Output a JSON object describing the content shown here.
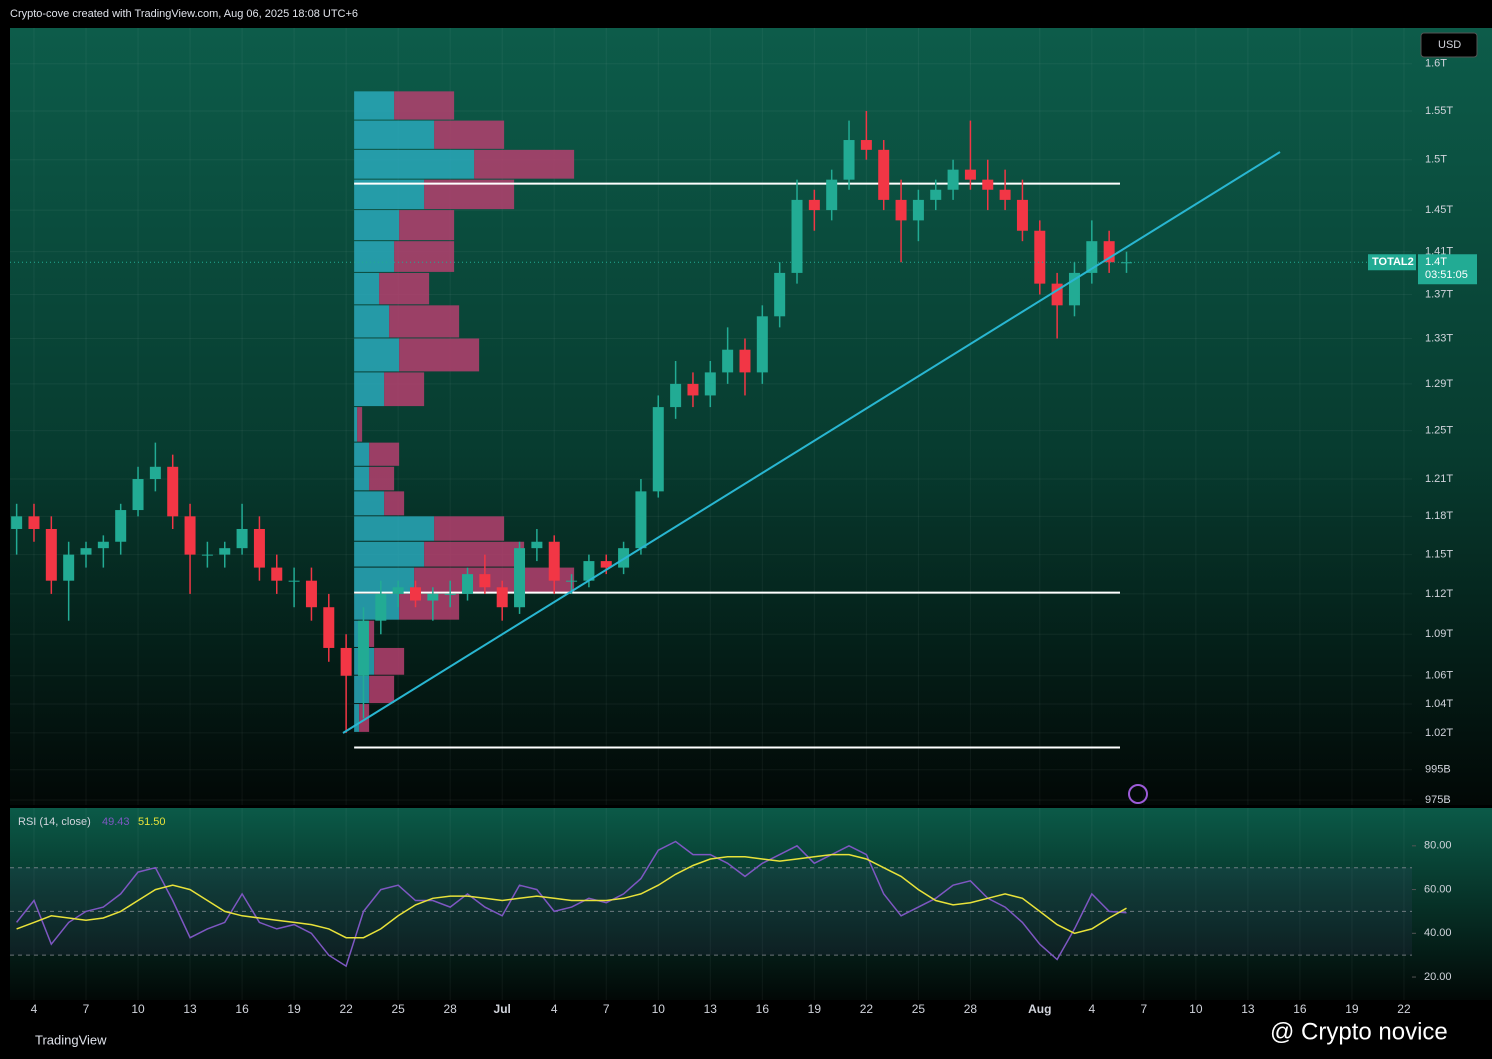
{
  "header": "Crypto-cove created with TradingView.com, Aug 06, 2025 18:08 UTC+6",
  "chart_data": {
    "type": "candlestick",
    "log_scale": true,
    "currency": "USD",
    "symbol": "TOTAL2",
    "up_color": "#22ab94",
    "down_color": "#f23645",
    "x": [
      "2025-06-03",
      "2025-06-04",
      "2025-06-05",
      "2025-06-06",
      "2025-06-07",
      "2025-06-08",
      "2025-06-09",
      "2025-06-10",
      "2025-06-11",
      "2025-06-12",
      "2025-06-13",
      "2025-06-14",
      "2025-06-15",
      "2025-06-16",
      "2025-06-17",
      "2025-06-18",
      "2025-06-19",
      "2025-06-20",
      "2025-06-21",
      "2025-06-22",
      "2025-06-23",
      "2025-06-24",
      "2025-06-25",
      "2025-06-26",
      "2025-06-27",
      "2025-06-28",
      "2025-06-29",
      "2025-06-30",
      "2025-07-01",
      "2025-07-02",
      "2025-07-03",
      "2025-07-04",
      "2025-07-05",
      "2025-07-06",
      "2025-07-07",
      "2025-07-08",
      "2025-07-09",
      "2025-07-10",
      "2025-07-11",
      "2025-07-12",
      "2025-07-13",
      "2025-07-14",
      "2025-07-15",
      "2025-07-16",
      "2025-07-17",
      "2025-07-18",
      "2025-07-19",
      "2025-07-20",
      "2025-07-21",
      "2025-07-22",
      "2025-07-23",
      "2025-07-24",
      "2025-07-25",
      "2025-07-26",
      "2025-07-27",
      "2025-07-28",
      "2025-07-29",
      "2025-07-30",
      "2025-07-31",
      "2025-08-01",
      "2025-08-02",
      "2025-08-03",
      "2025-08-04",
      "2025-08-05",
      "2025-08-06"
    ],
    "open": [
      1170000000000.0,
      1180000000000.0,
      1170000000000.0,
      1130000000000.0,
      1150000000000.0,
      1155000000000.0,
      1160000000000.0,
      1185000000000.0,
      1210000000000.0,
      1220000000000.0,
      1180000000000.0,
      1150000000000.0,
      1150000000000.0,
      1155000000000.0,
      1170000000000.0,
      1140000000000.0,
      1130000000000.0,
      1130000000000.0,
      1110000000000.0,
      1080000000000.0,
      1060000000000.0,
      1100000000000.0,
      1120000000000.0,
      1125000000000.0,
      1115000000000.0,
      1120000000000.0,
      1120000000000.0,
      1135000000000.0,
      1125000000000.0,
      1110000000000.0,
      1155000000000.0,
      1160000000000.0,
      1130000000000.0,
      1130000000000.0,
      1145000000000.0,
      1140000000000.0,
      1155000000000.0,
      1200000000000.0,
      1270000000000.0,
      1290000000000.0,
      1280000000000.0,
      1300000000000.0,
      1320000000000.0,
      1300000000000.0,
      1350000000000.0,
      1390000000000.0,
      1460000000000.0,
      1450000000000.0,
      1480000000000.0,
      1520000000000.0,
      1510000000000.0,
      1460000000000.0,
      1440000000000.0,
      1460000000000.0,
      1470000000000.0,
      1490000000000.0,
      1480000000000.0,
      1470000000000.0,
      1460000000000.0,
      1430000000000.0,
      1380000000000.0,
      1360000000000.0,
      1390000000000.0,
      1420000000000.0,
      1400000000000.0
    ],
    "high": [
      1190000000000.0,
      1190000000000.0,
      1180000000000.0,
      1160000000000.0,
      1160000000000.0,
      1165000000000.0,
      1190000000000.0,
      1220000000000.0,
      1240000000000.0,
      1230000000000.0,
      1190000000000.0,
      1160000000000.0,
      1160000000000.0,
      1190000000000.0,
      1180000000000.0,
      1150000000000.0,
      1140000000000.0,
      1140000000000.0,
      1120000000000.0,
      1090000000000.0,
      1110000000000.0,
      1130000000000.0,
      1130000000000.0,
      1130000000000.0,
      1125000000000.0,
      1130000000000.0,
      1140000000000.0,
      1150000000000.0,
      1130000000000.0,
      1160000000000.0,
      1170000000000.0,
      1165000000000.0,
      1135000000000.0,
      1150000000000.0,
      1150000000000.0,
      1160000000000.0,
      1210000000000.0,
      1280000000000.0,
      1310000000000.0,
      1300000000000.0,
      1310000000000.0,
      1340000000000.0,
      1330000000000.0,
      1360000000000.0,
      1400000000000.0,
      1480000000000.0,
      1470000000000.0,
      1490000000000.0,
      1540000000000.0,
      1550000000000.0,
      1520000000000.0,
      1480000000000.0,
      1470000000000.0,
      1480000000000.0,
      1500000000000.0,
      1540000000000.0,
      1500000000000.0,
      1490000000000.0,
      1480000000000.0,
      1440000000000.0,
      1390000000000.0,
      1400000000000.0,
      1440000000000.0,
      1430000000000.0,
      1410000000000.0
    ],
    "low": [
      1150000000000.0,
      1160000000000.0,
      1120000000000.0,
      1100000000000.0,
      1140000000000.0,
      1140000000000.0,
      1150000000000.0,
      1180000000000.0,
      1200000000000.0,
      1170000000000.0,
      1120000000000.0,
      1140000000000.0,
      1140000000000.0,
      1150000000000.0,
      1130000000000.0,
      1120000000000.0,
      1110000000000.0,
      1100000000000.0,
      1070000000000.0,
      1020000000000.0,
      1030000000000.0,
      1090000000000.0,
      1110000000000.0,
      1110000000000.0,
      1100000000000.0,
      1110000000000.0,
      1115000000000.0,
      1120000000000.0,
      1100000000000.0,
      1105000000000.0,
      1145000000000.0,
      1120000000000.0,
      1120000000000.0,
      1125000000000.0,
      1135000000000.0,
      1135000000000.0,
      1150000000000.0,
      1195000000000.0,
      1260000000000.0,
      1270000000000.0,
      1270000000000.0,
      1290000000000.0,
      1280000000000.0,
      1290000000000.0,
      1340000000000.0,
      1380000000000.0,
      1430000000000.0,
      1440000000000.0,
      1470000000000.0,
      1500000000000.0,
      1450000000000.0,
      1400000000000.0,
      1420000000000.0,
      1450000000000.0,
      1460000000000.0,
      1470000000000.0,
      1450000000000.0,
      1450000000000.0,
      1420000000000.0,
      1370000000000.0,
      1330000000000.0,
      1350000000000.0,
      1380000000000.0,
      1390000000000.0,
      1390000000000.0
    ],
    "close": [
      1180000000000.0,
      1170000000000.0,
      1130000000000.0,
      1150000000000.0,
      1155000000000.0,
      1160000000000.0,
      1185000000000.0,
      1210000000000.0,
      1220000000000.0,
      1180000000000.0,
      1150000000000.0,
      1150000000000.0,
      1155000000000.0,
      1170000000000.0,
      1140000000000.0,
      1130000000000.0,
      1130000000000.0,
      1110000000000.0,
      1080000000000.0,
      1060000000000.0,
      1100000000000.0,
      1120000000000.0,
      1125000000000.0,
      1115000000000.0,
      1120000000000.0,
      1120000000000.0,
      1135000000000.0,
      1125000000000.0,
      1110000000000.0,
      1155000000000.0,
      1160000000000.0,
      1130000000000.0,
      1130000000000.0,
      1145000000000.0,
      1140000000000.0,
      1155000000000.0,
      1200000000000.0,
      1270000000000.0,
      1290000000000.0,
      1280000000000.0,
      1300000000000.0,
      1320000000000.0,
      1300000000000.0,
      1350000000000.0,
      1390000000000.0,
      1460000000000.0,
      1450000000000.0,
      1480000000000.0,
      1520000000000.0,
      1510000000000.0,
      1460000000000.0,
      1440000000000.0,
      1460000000000.0,
      1470000000000.0,
      1490000000000.0,
      1480000000000.0,
      1470000000000.0,
      1460000000000.0,
      1430000000000.0,
      1380000000000.0,
      1360000000000.0,
      1390000000000.0,
      1420000000000.0,
      1400000000000.0,
      1400000000000.0
    ],
    "xlim": [
      "2025-06-02",
      "2025-08-23"
    ],
    "xticks": [
      {
        "value": "2025-06-04",
        "label": "4"
      },
      {
        "value": "2025-06-07",
        "label": "7"
      },
      {
        "value": "2025-06-10",
        "label": "10"
      },
      {
        "value": "2025-06-13",
        "label": "13"
      },
      {
        "value": "2025-06-16",
        "label": "16"
      },
      {
        "value": "2025-06-19",
        "label": "19"
      },
      {
        "value": "2025-06-22",
        "label": "22"
      },
      {
        "value": "2025-06-25",
        "label": "25"
      },
      {
        "value": "2025-06-28",
        "label": "28"
      },
      {
        "value": "2025-07-01",
        "label": "Jul"
      },
      {
        "value": "2025-07-04",
        "label": "4"
      },
      {
        "value": "2025-07-07",
        "label": "7"
      },
      {
        "value": "2025-07-10",
        "label": "10"
      },
      {
        "value": "2025-07-13",
        "label": "13"
      },
      {
        "value": "2025-07-16",
        "label": "16"
      },
      {
        "value": "2025-07-19",
        "label": "19"
      },
      {
        "value": "2025-07-22",
        "label": "22"
      },
      {
        "value": "2025-07-25",
        "label": "25"
      },
      {
        "value": "2025-07-28",
        "label": "28"
      },
      {
        "value": "2025-08-01",
        "label": "Aug"
      },
      {
        "value": "2025-08-04",
        "label": "4"
      },
      {
        "value": "2025-08-07",
        "label": "7"
      },
      {
        "value": "2025-08-10",
        "label": "10"
      },
      {
        "value": "2025-08-13",
        "label": "13"
      },
      {
        "value": "2025-08-16",
        "label": "16"
      },
      {
        "value": "2025-08-19",
        "label": "19"
      },
      {
        "value": "2025-08-22",
        "label": "22"
      }
    ],
    "ylim": [
      971700000000.0,
      1639000000000.0
    ],
    "yticks": [
      {
        "value": 1600000000000.0,
        "label": "1.6T"
      },
      {
        "value": 1550000000000.0,
        "label": "1.55T"
      },
      {
        "value": 1500000000000.0,
        "label": "1.5T"
      },
      {
        "value": 1450000000000.0,
        "label": "1.45T"
      },
      {
        "value": 1410000000000.0,
        "label": "1.41T"
      },
      {
        "value": 1370000000000.0,
        "label": "1.37T"
      },
      {
        "value": 1330000000000.0,
        "label": "1.33T"
      },
      {
        "value": 1290000000000.0,
        "label": "1.29T"
      },
      {
        "value": 1250000000000.0,
        "label": "1.25T"
      },
      {
        "value": 1210000000000.0,
        "label": "1.21T"
      },
      {
        "value": 1180000000000.0,
        "label": "1.18T"
      },
      {
        "value": 1150000000000.0,
        "label": "1.15T"
      },
      {
        "value": 1120000000000.0,
        "label": "1.12T"
      },
      {
        "value": 1090000000000.0,
        "label": "1.09T"
      },
      {
        "value": 1060000000000.0,
        "label": "1.06T"
      },
      {
        "value": 1040000000000.0,
        "label": "1.04T"
      },
      {
        "value": 1020000000000.0,
        "label": "1.02T"
      },
      {
        "value": 995000000000.0,
        "label": "995B"
      },
      {
        "value": 975000000000.0,
        "label": "975B"
      }
    ],
    "last_price": {
      "value": 1400000000000.0,
      "label": "1.4T",
      "countdown": "03:51:05"
    },
    "levels": [
      1476000000000.0,
      1121000000000.0,
      1010000000000.0
    ],
    "volume_profile": {
      "prices": [
        1020000000000.0,
        1040000000000.0,
        1060000000000.0,
        1080000000000.0,
        1100000000000.0,
        1120000000000.0,
        1140000000000.0,
        1160000000000.0,
        1180000000000.0,
        1200000000000.0,
        1220000000000.0,
        1240000000000.0,
        1270000000000.0,
        1300000000000.0,
        1330000000000.0,
        1360000000000.0,
        1390000000000.0,
        1420000000000.0,
        1450000000000.0,
        1480000000000.0,
        1510000000000.0,
        1540000000000.0
      ],
      "up": [
        5,
        15,
        20,
        10,
        45,
        60,
        70,
        80,
        30,
        15,
        15,
        3,
        30,
        45,
        35,
        25,
        40,
        45,
        70,
        120,
        80,
        40
      ],
      "down": [
        10,
        25,
        30,
        10,
        60,
        160,
        100,
        70,
        20,
        25,
        30,
        5,
        40,
        80,
        70,
        50,
        60,
        55,
        90,
        100,
        70,
        60
      ],
      "up_color": "#2aa9bb",
      "down_color": "#b5406e"
    },
    "rsi": {
      "title": "RSI (14, close)",
      "value_label": "49.43",
      "ma_label": "51.50",
      "color": "#7e57c2",
      "ma_color": "#e8e23a",
      "ylim": [
        9.5,
        97.3
      ],
      "yticks": [
        {
          "value": 80,
          "label": "80.00"
        },
        {
          "value": 60,
          "label": "60.00"
        },
        {
          "value": 40,
          "label": "40.00"
        },
        {
          "value": 20,
          "label": "20.00"
        }
      ],
      "bands": [
        70,
        50,
        30
      ],
      "values": [
        45,
        55,
        35,
        45,
        50,
        52,
        58,
        68,
        70,
        55,
        38,
        42,
        45,
        58,
        45,
        42,
        44,
        40,
        30,
        25,
        50,
        60,
        62,
        55,
        55,
        52,
        58,
        52,
        48,
        62,
        60,
        50,
        52,
        56,
        54,
        58,
        65,
        78,
        82,
        76,
        76,
        72,
        66,
        72,
        76,
        80,
        72,
        76,
        80,
        76,
        58,
        48,
        52,
        56,
        62,
        64,
        56,
        52,
        45,
        35,
        28,
        42,
        58,
        50,
        49.43
      ],
      "ma": [
        42,
        45,
        48,
        47,
        46,
        47,
        50,
        55,
        60,
        62,
        60,
        55,
        50,
        48,
        47,
        46,
        45,
        44,
        42,
        38,
        38,
        42,
        48,
        53,
        56,
        57,
        57,
        56,
        55,
        56,
        57,
        56,
        55,
        55,
        55,
        56,
        58,
        62,
        67,
        71,
        74,
        75,
        75,
        74,
        73,
        74,
        75,
        76,
        76,
        74,
        70,
        66,
        60,
        55,
        53,
        54,
        56,
        58,
        56,
        50,
        44,
        40,
        42,
        47,
        51.5
      ]
    }
  },
  "footer": {
    "logo": "TradingView",
    "credit": "@ Crypto novice"
  }
}
